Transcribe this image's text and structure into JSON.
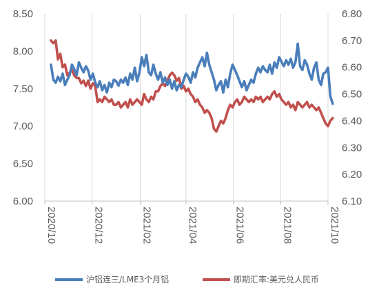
{
  "chart_data": {
    "type": "line",
    "title": "",
    "x_ticks": [
      "2020/10",
      "2020/12",
      "2021/02",
      "2021/04",
      "2021/06",
      "2021/08",
      "2021/10"
    ],
    "y_left": {
      "ticks": [
        "6.00",
        "6.50",
        "7.00",
        "7.50",
        "8.00",
        "8.50"
      ],
      "range": [
        6.0,
        8.5
      ]
    },
    "y_right": {
      "ticks": [
        "6.10",
        "6.20",
        "6.30",
        "6.40",
        "6.50",
        "6.60",
        "6.70",
        "6.80"
      ],
      "range": [
        6.1,
        6.8
      ]
    },
    "grid": "vertical-lines-at-ticks",
    "legend_position": "bottom",
    "series": [
      {
        "name": "沪铝连三/LME3个月铝",
        "axis": "left",
        "color": "#4a7ebb",
        "x": [
          "2020-10-09",
          "2020-10-12",
          "2020-10-15",
          "2020-10-18",
          "2020-10-21",
          "2020-10-24",
          "2020-10-27",
          "2020-10-30",
          "2020-11-02",
          "2020-11-05",
          "2020-11-08",
          "2020-11-11",
          "2020-11-14",
          "2020-11-17",
          "2020-11-20",
          "2020-11-23",
          "2020-11-26",
          "2020-11-29",
          "2020-12-02",
          "2020-12-05",
          "2020-12-08",
          "2020-12-11",
          "2020-12-14",
          "2020-12-17",
          "2020-12-20",
          "2020-12-23",
          "2020-12-26",
          "2020-12-29",
          "2021-01-01",
          "2021-01-04",
          "2021-01-07",
          "2021-01-10",
          "2021-01-13",
          "2021-01-16",
          "2021-01-19",
          "2021-01-22",
          "2021-01-25",
          "2021-01-28",
          "2021-01-31",
          "2021-02-03",
          "2021-02-06",
          "2021-02-09",
          "2021-02-12",
          "2021-02-15",
          "2021-02-18",
          "2021-02-21",
          "2021-02-24",
          "2021-02-27",
          "2021-03-02",
          "2021-03-05",
          "2021-03-08",
          "2021-03-11",
          "2021-03-14",
          "2021-03-17",
          "2021-03-20",
          "2021-03-23",
          "2021-03-26",
          "2021-03-29",
          "2021-04-01",
          "2021-04-04",
          "2021-04-07",
          "2021-04-10",
          "2021-04-13",
          "2021-04-16",
          "2021-04-19",
          "2021-04-22",
          "2021-04-25",
          "2021-04-28",
          "2021-05-01",
          "2021-05-04",
          "2021-05-07",
          "2021-05-10",
          "2021-05-13",
          "2021-05-16",
          "2021-05-19",
          "2021-05-22",
          "2021-05-25",
          "2021-05-28",
          "2021-05-31",
          "2021-06-03",
          "2021-06-06",
          "2021-06-09",
          "2021-06-12",
          "2021-06-15",
          "2021-06-18",
          "2021-06-21",
          "2021-06-24",
          "2021-06-27",
          "2021-06-30",
          "2021-07-03",
          "2021-07-06",
          "2021-07-09",
          "2021-07-12",
          "2021-07-15",
          "2021-07-18",
          "2021-07-21",
          "2021-07-24",
          "2021-07-27",
          "2021-07-30",
          "2021-08-02",
          "2021-08-05",
          "2021-08-08",
          "2021-08-11",
          "2021-08-14",
          "2021-08-17",
          "2021-08-20",
          "2021-08-23",
          "2021-08-26",
          "2021-08-29",
          "2021-09-01",
          "2021-09-04",
          "2021-09-07",
          "2021-09-10",
          "2021-09-13",
          "2021-09-16",
          "2021-09-19",
          "2021-09-22",
          "2021-09-25",
          "2021-09-28",
          "2021-10-01",
          "2021-10-04",
          "2021-10-07"
        ],
        "values": [
          7.82,
          7.62,
          7.58,
          7.66,
          7.6,
          7.7,
          7.55,
          7.62,
          7.68,
          7.82,
          7.76,
          7.68,
          7.85,
          7.78,
          7.72,
          7.8,
          7.74,
          7.62,
          7.7,
          7.58,
          7.52,
          7.6,
          7.48,
          7.55,
          7.45,
          7.58,
          7.52,
          7.62,
          7.6,
          7.54,
          7.62,
          7.58,
          7.65,
          7.55,
          7.7,
          7.62,
          7.78,
          7.6,
          7.72,
          7.92,
          7.8,
          7.95,
          7.72,
          7.68,
          7.82,
          7.7,
          7.62,
          7.72,
          7.58,
          7.65,
          7.55,
          7.62,
          7.5,
          7.6,
          7.48,
          7.55,
          7.52,
          7.62,
          7.7,
          7.66,
          7.58,
          7.72,
          7.65,
          7.78,
          7.85,
          7.92,
          7.8,
          7.98,
          7.82,
          7.72,
          7.62,
          7.48,
          7.55,
          7.6,
          7.45,
          7.62,
          7.52,
          7.7,
          7.82,
          7.75,
          7.68,
          7.6,
          7.52,
          7.6,
          7.48,
          7.55,
          7.62,
          7.58,
          7.7,
          7.78,
          7.72,
          7.8,
          7.75,
          7.72,
          7.82,
          7.7,
          7.85,
          7.78,
          7.92,
          7.86,
          7.8,
          7.88,
          7.82,
          7.9,
          7.78,
          7.85,
          8.1,
          7.8,
          7.75,
          7.88,
          7.82,
          7.7,
          7.62,
          7.78,
          7.85,
          7.62,
          7.55,
          7.7,
          7.72,
          7.78,
          7.4,
          7.3
        ]
      },
      {
        "name": "即期汇率:美元兑人民币",
        "axis": "right",
        "color": "#c0504d",
        "x": [
          "2020-10-09",
          "2020-10-12",
          "2020-10-15",
          "2020-10-18",
          "2020-10-21",
          "2020-10-24",
          "2020-10-27",
          "2020-10-30",
          "2020-11-02",
          "2020-11-05",
          "2020-11-08",
          "2020-11-11",
          "2020-11-14",
          "2020-11-17",
          "2020-11-20",
          "2020-11-23",
          "2020-11-26",
          "2020-11-29",
          "2020-12-02",
          "2020-12-05",
          "2020-12-08",
          "2020-12-11",
          "2020-12-14",
          "2020-12-17",
          "2020-12-20",
          "2020-12-23",
          "2020-12-26",
          "2020-12-29",
          "2021-01-01",
          "2021-01-04",
          "2021-01-07",
          "2021-01-10",
          "2021-01-13",
          "2021-01-16",
          "2021-01-19",
          "2021-01-22",
          "2021-01-25",
          "2021-01-28",
          "2021-01-31",
          "2021-02-03",
          "2021-02-06",
          "2021-02-09",
          "2021-02-12",
          "2021-02-15",
          "2021-02-18",
          "2021-02-21",
          "2021-02-24",
          "2021-02-27",
          "2021-03-02",
          "2021-03-05",
          "2021-03-08",
          "2021-03-11",
          "2021-03-14",
          "2021-03-17",
          "2021-03-20",
          "2021-03-23",
          "2021-03-26",
          "2021-03-29",
          "2021-04-01",
          "2021-04-04",
          "2021-04-07",
          "2021-04-10",
          "2021-04-13",
          "2021-04-16",
          "2021-04-19",
          "2021-04-22",
          "2021-04-25",
          "2021-04-28",
          "2021-05-01",
          "2021-05-04",
          "2021-05-07",
          "2021-05-10",
          "2021-05-13",
          "2021-05-16",
          "2021-05-19",
          "2021-05-22",
          "2021-05-25",
          "2021-05-28",
          "2021-05-31",
          "2021-06-03",
          "2021-06-06",
          "2021-06-09",
          "2021-06-12",
          "2021-06-15",
          "2021-06-18",
          "2021-06-21",
          "2021-06-24",
          "2021-06-27",
          "2021-06-30",
          "2021-07-03",
          "2021-07-06",
          "2021-07-09",
          "2021-07-12",
          "2021-07-15",
          "2021-07-18",
          "2021-07-21",
          "2021-07-24",
          "2021-07-27",
          "2021-07-30",
          "2021-08-02",
          "2021-08-05",
          "2021-08-08",
          "2021-08-11",
          "2021-08-14",
          "2021-08-17",
          "2021-08-20",
          "2021-08-23",
          "2021-08-26",
          "2021-08-29",
          "2021-09-01",
          "2021-09-04",
          "2021-09-07",
          "2021-09-10",
          "2021-09-13",
          "2021-09-16",
          "2021-09-19",
          "2021-09-22",
          "2021-09-25",
          "2021-09-28",
          "2021-10-01",
          "2021-10-04",
          "2021-10-07"
        ],
        "values": [
          6.7,
          6.69,
          6.7,
          6.63,
          6.65,
          6.6,
          6.61,
          6.57,
          6.58,
          6.59,
          6.57,
          6.56,
          6.56,
          6.54,
          6.55,
          6.53,
          6.55,
          6.52,
          6.54,
          6.53,
          6.47,
          6.48,
          6.47,
          6.49,
          6.48,
          6.47,
          6.48,
          6.46,
          6.46,
          6.47,
          6.45,
          6.46,
          6.47,
          6.45,
          6.48,
          6.46,
          6.47,
          6.48,
          6.47,
          6.46,
          6.5,
          6.48,
          6.47,
          6.49,
          6.48,
          6.51,
          6.51,
          6.53,
          6.54,
          6.53,
          6.55,
          6.57,
          6.58,
          6.57,
          6.55,
          6.56,
          6.52,
          6.53,
          6.51,
          6.52,
          6.5,
          6.49,
          6.47,
          6.48,
          6.46,
          6.45,
          6.43,
          6.44,
          6.43,
          6.41,
          6.37,
          6.36,
          6.38,
          6.4,
          6.39,
          6.41,
          6.44,
          6.46,
          6.45,
          6.47,
          6.48,
          6.46,
          6.47,
          6.49,
          6.48,
          6.47,
          6.48,
          6.47,
          6.49,
          6.48,
          6.49,
          6.47,
          6.48,
          6.49,
          6.48,
          6.5,
          6.51,
          6.49,
          6.5,
          6.48,
          6.47,
          6.46,
          6.47,
          6.45,
          6.46,
          6.44,
          6.47,
          6.46,
          6.45,
          6.46,
          6.47,
          6.45,
          6.46,
          6.45,
          6.44,
          6.45,
          6.43,
          6.41,
          6.39,
          6.38,
          6.4,
          6.41
        ]
      }
    ]
  }
}
